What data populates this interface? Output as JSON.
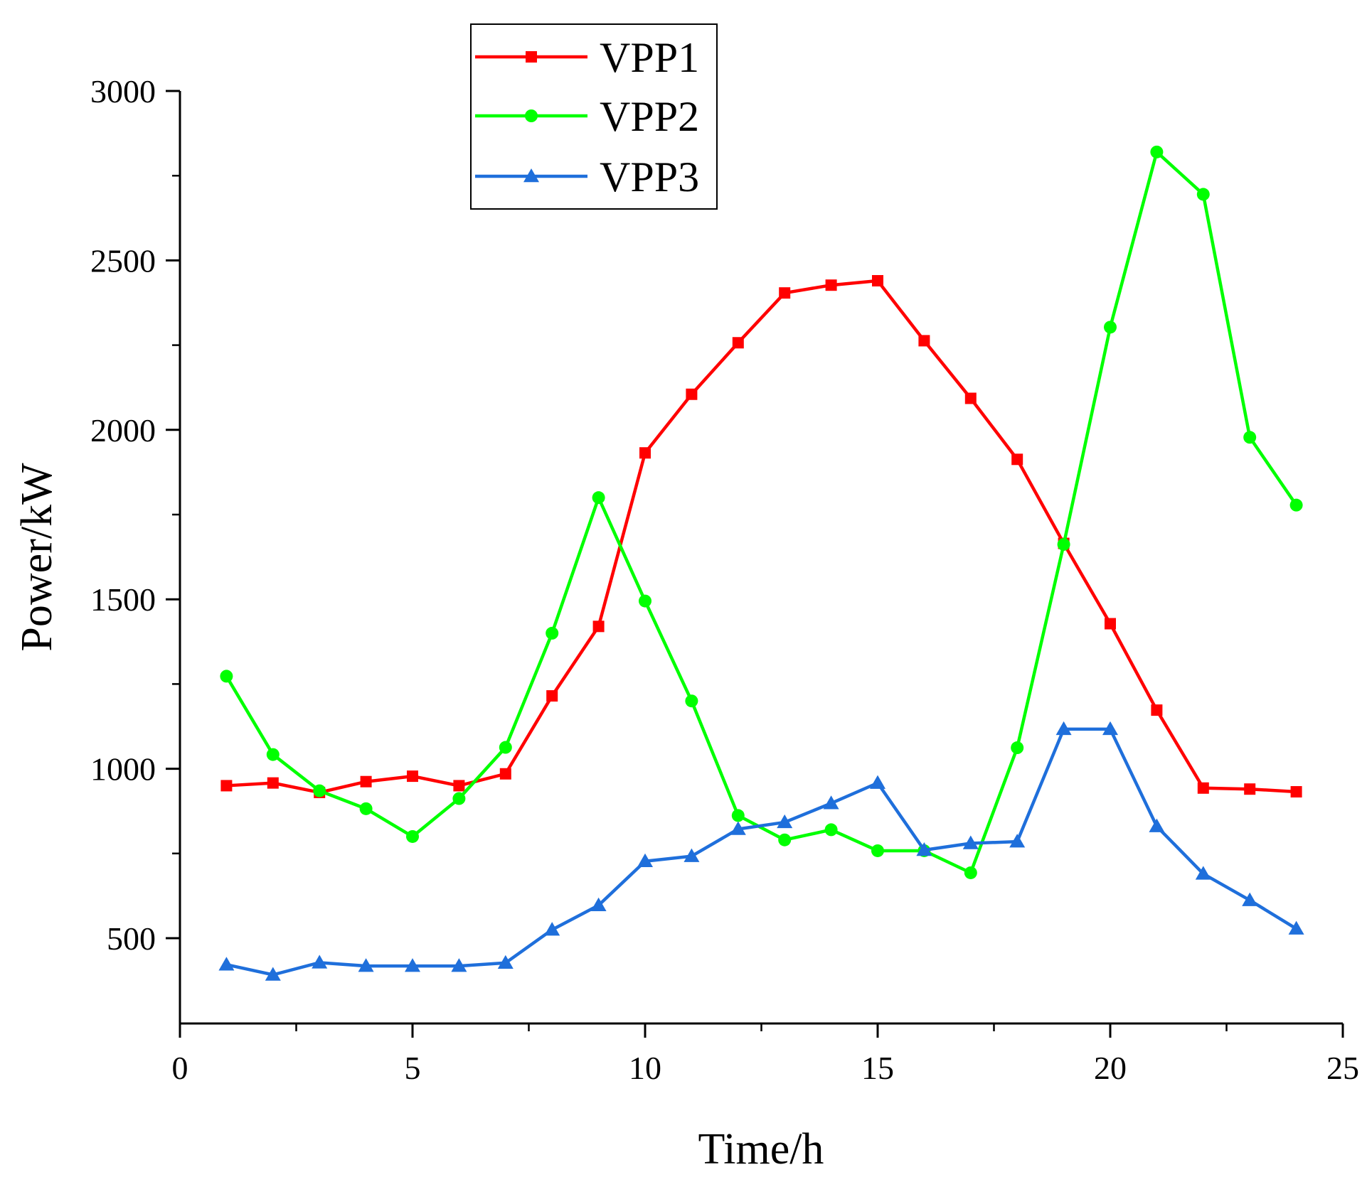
{
  "chart_data": {
    "type": "line",
    "title": "",
    "xlabel": "Time/h",
    "ylabel": "Power/kW",
    "xlim": [
      0,
      25
    ],
    "ylim": [
      250,
      3000
    ],
    "xticks": [
      "0",
      "5",
      "10",
      "15",
      "20",
      "25"
    ],
    "yticks": [
      "500",
      "1000",
      "1500",
      "2000",
      "2500",
      "3000"
    ],
    "grid": false,
    "legend_position": "top-center",
    "x": [
      1,
      2,
      3,
      4,
      5,
      6,
      7,
      8,
      9,
      10,
      11,
      12,
      13,
      14,
      15,
      16,
      17,
      18,
      19,
      20,
      21,
      22,
      23,
      24
    ],
    "series": [
      {
        "name": "VPP1",
        "color": "#ff0000",
        "marker": "square",
        "values": [
          950,
          958,
          930,
          962,
          978,
          950,
          985,
          1215,
          1420,
          1932,
          2105,
          2257,
          2404,
          2427,
          2440,
          2263,
          2093,
          1913,
          1665,
          1428,
          1173,
          943,
          940,
          932
        ]
      },
      {
        "name": "VPP2",
        "color": "#00ff00",
        "marker": "circle",
        "values": [
          1273,
          1042,
          935,
          882,
          800,
          912,
          1063,
          1400,
          1800,
          1495,
          1200,
          862,
          790,
          820,
          758,
          758,
          693,
          1062,
          1662,
          2303,
          2820,
          2695,
          1978,
          1778
        ]
      },
      {
        "name": "VPP3",
        "color": "#1f6fdb",
        "marker": "triangle",
        "values": [
          422,
          392,
          428,
          418,
          418,
          418,
          427,
          525,
          597,
          727,
          742,
          822,
          842,
          898,
          958,
          760,
          780,
          785,
          1117,
          1117,
          830,
          690,
          612,
          528
        ]
      }
    ]
  }
}
